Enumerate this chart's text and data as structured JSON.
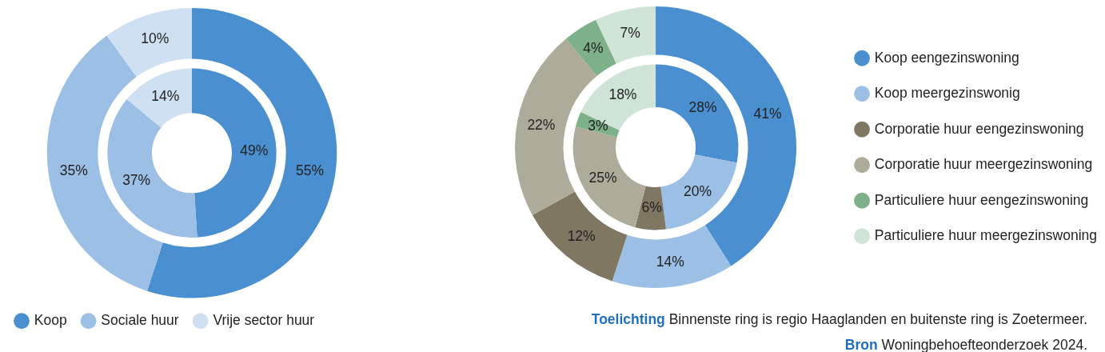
{
  "chart_data": [
    {
      "type": "donut",
      "categories": [
        "Koop",
        "Sociale huur",
        "Vrije sector huur"
      ],
      "colors": [
        "#4a8fd0",
        "#9bbfe5",
        "#cfe0f2"
      ],
      "legend": "bottom",
      "series": [
        {
          "values": [
            55,
            35,
            10
          ],
          "value_labels": [
            "55%",
            "35%",
            "10%"
          ]
        },
        {
          "values": [
            49,
            37,
            14
          ],
          "value_labels": [
            "49%",
            "37%",
            "14%"
          ]
        }
      ]
    },
    {
      "type": "donut",
      "categories": [
        "Koop eengezinswoning",
        "Koop meergezinswonig",
        "Corporatie huur eengezinswoning",
        "Corporatie huur meergezinswoning",
        "Particuliere huur eengezinswoning",
        "Particuliere huur meergezinswoning"
      ],
      "colors": [
        "#4a8fd0",
        "#9bbfe5",
        "#7f7762",
        "#afab9b",
        "#7eb08a",
        "#cfe3d6"
      ],
      "legend": "right",
      "series": [
        {
          "values": [
            41,
            14,
            12,
            22,
            4,
            7
          ],
          "value_labels": [
            "41%",
            "14%",
            "12%",
            "22%",
            "4%",
            "7%"
          ]
        },
        {
          "values": [
            28,
            20,
            6,
            25,
            3,
            18
          ],
          "value_labels": [
            "28%",
            "20%",
            "6%",
            "25%",
            "3%",
            "18%"
          ]
        }
      ],
      "annotations": [
        "Toelichting Binnenste ring is regio Haaglanden en buitenste ring is Zoetermeer.",
        "Bron Woningbehoefteonderzoek 2024."
      ]
    }
  ]
}
